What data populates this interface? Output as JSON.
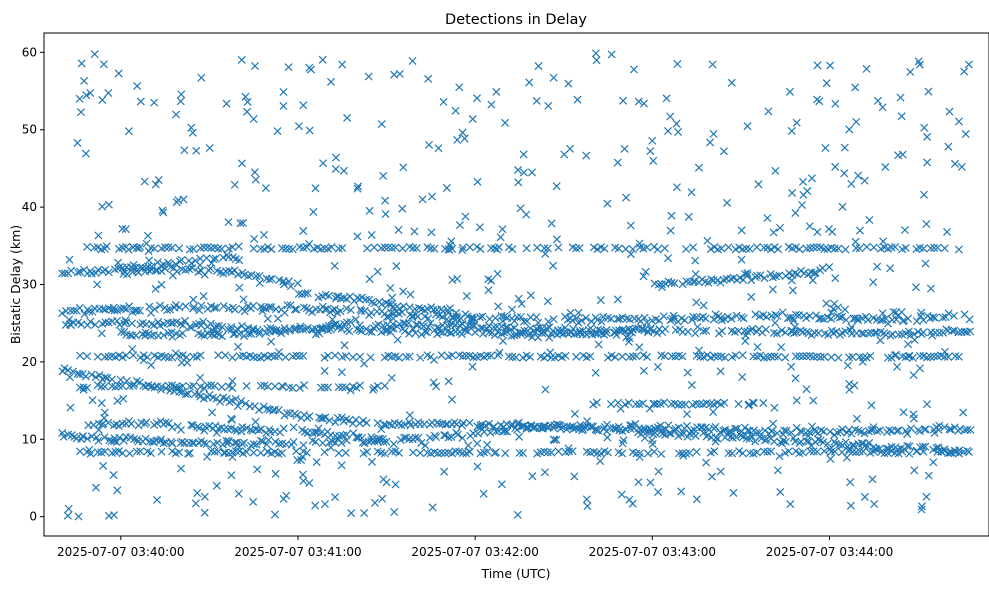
{
  "chart_data": {
    "type": "scatter",
    "title": "Detections in Delay",
    "xlabel": "Time (UTC)",
    "ylabel": "Bistatic Delay (km)",
    "marker": "x",
    "color": "#1f77b4",
    "grid": false,
    "legend": "none",
    "x_start": "2025-07-07 03:39:40",
    "x_end": "2025-07-07 03:44:48",
    "xlim": [
      "2025-07-07 03:39:34",
      "2025-07-07 03:44:54"
    ],
    "ylim": [
      -2.5,
      62.5
    ],
    "x_ticks": [
      {
        "value": "2025-07-07 03:40:00",
        "label": "2025-07-07 03:40:00"
      },
      {
        "value": "2025-07-07 03:41:00",
        "label": "2025-07-07 03:41:00"
      },
      {
        "value": "2025-07-07 03:42:00",
        "label": "2025-07-07 03:42:00"
      },
      {
        "value": "2025-07-07 03:43:00",
        "label": "2025-07-07 03:43:00"
      },
      {
        "value": "2025-07-07 03:44:00",
        "label": "2025-07-07 03:44:00"
      }
    ],
    "y_ticks": [
      {
        "value": 0,
        "label": "0"
      },
      {
        "value": 10,
        "label": "10"
      },
      {
        "value": 20,
        "label": "20"
      },
      {
        "value": 30,
        "label": "30"
      },
      {
        "value": 40,
        "label": "40"
      },
      {
        "value": 50,
        "label": "50"
      },
      {
        "value": 60,
        "label": "60"
      }
    ],
    "tracks": [
      {
        "t": [
          "2025-07-07 03:39:40",
          "2025-07-07 03:40:20",
          "2025-07-07 03:41:00",
          "2025-07-07 03:41:40",
          "2025-07-07 03:42:20",
          "2025-07-07 03:43:00",
          "2025-07-07 03:43:40",
          "2025-07-07 03:44:20",
          "2025-07-07 03:44:48"
        ],
        "y": [
          26.5,
          27.0,
          27.0,
          26.0,
          25.5,
          25.5,
          26.0,
          25.5,
          26.0
        ]
      },
      {
        "t": [
          "2025-07-07 03:39:40",
          "2025-07-07 03:40:20",
          "2025-07-07 03:41:00",
          "2025-07-07 03:41:40",
          "2025-07-07 03:42:20",
          "2025-07-07 03:43:00",
          "2025-07-07 03:43:40",
          "2025-07-07 03:44:20",
          "2025-07-07 03:44:48"
        ],
        "y": [
          25.0,
          25.0,
          24.0,
          24.0,
          23.5,
          24.0,
          24.0,
          23.5,
          24.0
        ]
      },
      {
        "t": [
          "2025-07-07 03:40:00",
          "2025-07-07 03:40:40",
          "2025-07-07 03:41:20",
          "2025-07-07 03:42:00",
          "2025-07-07 03:42:40",
          "2025-07-07 03:43:00"
        ],
        "y": [
          23.5,
          23.5,
          25.0,
          24.5,
          24.0,
          24.0
        ]
      },
      {
        "t": [
          "2025-07-07 03:39:40",
          "2025-07-07 03:40:00",
          "2025-07-07 03:40:30",
          "2025-07-07 03:41:00",
          "2025-07-07 03:41:30"
        ],
        "y": [
          19.0,
          17.5,
          15.5,
          13.0,
          12.0
        ]
      },
      {
        "t": [
          "2025-07-07 03:39:40",
          "2025-07-07 03:40:20",
          "2025-07-07 03:41:00",
          "2025-07-07 03:41:40",
          "2025-07-07 03:42:20",
          "2025-07-07 03:43:00",
          "2025-07-07 03:43:40",
          "2025-07-07 03:44:20",
          "2025-07-07 03:44:48"
        ],
        "y": [
          10.5,
          9.5,
          9.5,
          10.0,
          11.5,
          11.5,
          11.0,
          11.0,
          11.5
        ]
      },
      {
        "t": [
          "2025-07-07 03:41:30",
          "2025-07-07 03:42:00",
          "2025-07-07 03:42:40",
          "2025-07-07 03:43:00",
          "2025-07-07 03:43:40",
          "2025-07-07 03:44:20",
          "2025-07-07 03:44:48"
        ],
        "y": [
          12.0,
          12.0,
          11.5,
          11.0,
          10.0,
          9.0,
          8.5
        ]
      },
      {
        "t": [
          "2025-07-07 03:39:48",
          "2025-07-07 03:40:10",
          "2025-07-07 03:40:30",
          "2025-07-07 03:41:00",
          "2025-07-07 03:41:30"
        ],
        "y": [
          12.0,
          12.0,
          11.5,
          11.0,
          10.0
        ]
      },
      {
        "t": [
          "2025-07-07 03:40:00",
          "2025-07-07 03:40:20",
          "2025-07-07 03:40:40",
          "2025-07-07 03:41:00"
        ],
        "y": [
          31.5,
          32.0,
          31.5,
          30.0
        ]
      },
      {
        "t": [
          "2025-07-07 03:41:00",
          "2025-07-07 03:41:30",
          "2025-07-07 03:42:00"
        ],
        "y": [
          29.0,
          27.5,
          26.0
        ]
      },
      {
        "t": [
          "2025-07-07 03:43:00",
          "2025-07-07 03:43:20",
          "2025-07-07 03:43:40",
          "2025-07-07 03:44:00"
        ],
        "y": [
          30.0,
          30.5,
          31.0,
          32.0
        ]
      },
      {
        "t": [
          "2025-07-07 03:39:40",
          "2025-07-07 03:40:00",
          "2025-07-07 03:40:20",
          "2025-07-07 03:40:40"
        ],
        "y": [
          31.5,
          32.0,
          33.0,
          33.5
        ]
      }
    ],
    "bands": [
      {
        "t_start": "2025-07-07 03:39:45",
        "t_end": "2025-07-07 03:44:45",
        "y": 34.7
      },
      {
        "t_start": "2025-07-07 03:39:45",
        "t_end": "2025-07-07 03:44:45",
        "y": 20.7
      },
      {
        "t_start": "2025-07-07 03:39:45",
        "t_end": "2025-07-07 03:44:45",
        "y": 8.3
      },
      {
        "t_start": "2025-07-07 03:42:40",
        "t_end": "2025-07-07 03:43:40",
        "y": 14.6
      },
      {
        "t_start": "2025-07-07 03:39:45",
        "t_end": "2025-07-07 03:41:30",
        "y": 16.8
      }
    ],
    "noise": {
      "count": 620,
      "y_range": [
        0,
        60
      ],
      "seed": 20250707
    }
  }
}
